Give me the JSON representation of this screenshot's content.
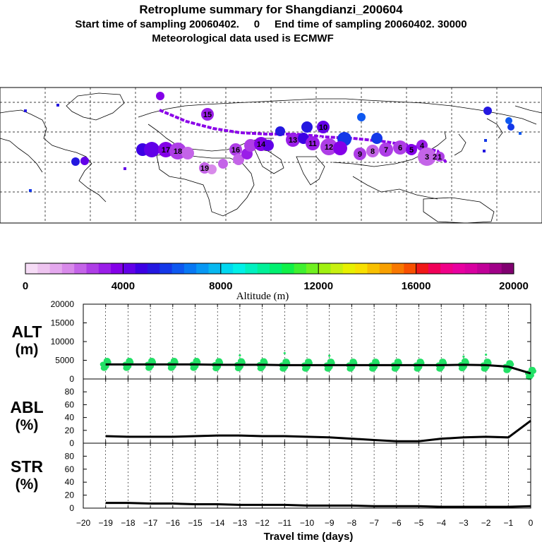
{
  "header": {
    "title": "Retroplume summary for Shangdianzi_200604",
    "line2": "Start time of sampling 20060402.     0     End time of sampling 20060402. 30000",
    "line3": "Meteorological data used is ECMWF"
  },
  "colorbar": {
    "ticks": [
      "0",
      "4000",
      "8000",
      "12000",
      "16000",
      "20000"
    ],
    "label": "Altitude  (m)",
    "colors": [
      "#f6dcf6",
      "#eec4f0",
      "#e4a8ee",
      "#d88aea",
      "#c464e8",
      "#ae3ee6",
      "#9a1ee8",
      "#8400e8",
      "#6200e8",
      "#3c00e4",
      "#2418e0",
      "#1438e8",
      "#0e58f0",
      "#0878f4",
      "#0898f4",
      "#08b8f0",
      "#00d8f0",
      "#00f0e8",
      "#00f0c0",
      "#00f098",
      "#00f070",
      "#10f048",
      "#40f030",
      "#70f020",
      "#a0f010",
      "#c8f010",
      "#e8f000",
      "#f8e000",
      "#f8c000",
      "#f8a000",
      "#f87800",
      "#f85000",
      "#f01818",
      "#f00058",
      "#f00088",
      "#e800a0",
      "#d800a0",
      "#c00098",
      "#a00088",
      "#800070"
    ]
  },
  "map": {
    "trajectory_color": "#8a00e8",
    "clusters": [
      {
        "label": "15"
      },
      {
        "label": "16"
      },
      {
        "label": "19"
      },
      {
        "label": "17"
      },
      {
        "label": "18"
      },
      {
        "label": "14"
      },
      {
        "label": "13"
      },
      {
        "label": "12"
      },
      {
        "label": "11"
      },
      {
        "label": "10"
      },
      {
        "label": "9"
      },
      {
        "label": "8"
      },
      {
        "label": "7"
      },
      {
        "label": "6"
      },
      {
        "label": "5"
      },
      {
        "label": "4"
      },
      {
        "label": "3"
      },
      {
        "label": "2"
      },
      {
        "label": "1"
      }
    ]
  },
  "panels": {
    "alt": {
      "label_line1": "ALT",
      "label_line2": "(m)"
    },
    "abl": {
      "label_line1": "ABL",
      "label_line2": "(%)"
    },
    "str": {
      "label_line1": "STR",
      "label_line2": "(%)"
    }
  },
  "xaxis_label": "Travel time (days)",
  "chart_data": [
    {
      "type": "line",
      "name": "ALT",
      "ylabel": "ALT (m)",
      "ylim": [
        0,
        20000
      ],
      "yticks": [
        0,
        5000,
        10000,
        15000,
        20000
      ],
      "xlim": [
        -20,
        0
      ],
      "x": [
        -19,
        -18,
        -17,
        -16,
        -15,
        -14,
        -13,
        -12,
        -11,
        -10,
        -9,
        -8,
        -7,
        -6,
        -5,
        -4,
        -3,
        -2,
        -1,
        0
      ],
      "values": [
        3900,
        3900,
        3900,
        3900,
        3900,
        3800,
        3800,
        3800,
        3700,
        3700,
        3700,
        3700,
        3700,
        3700,
        3700,
        3700,
        3800,
        3700,
        3300,
        1500
      ],
      "scatter_color": "#22e066",
      "series_color": "#000000"
    },
    {
      "type": "line",
      "name": "ABL",
      "ylabel": "ABL (%)",
      "ylim": [
        0,
        100
      ],
      "yticks": [
        0,
        20,
        40,
        60,
        80
      ],
      "xlim": [
        -20,
        0
      ],
      "x": [
        -19,
        -18,
        -17,
        -16,
        -15,
        -14,
        -13,
        -12,
        -11,
        -10,
        -9,
        -8,
        -7,
        -6,
        -5,
        -4,
        -3,
        -2,
        -1,
        0
      ],
      "values": [
        11,
        10,
        10,
        10,
        11,
        12,
        12,
        11,
        11,
        10,
        9,
        7,
        5,
        3,
        3,
        7,
        9,
        10,
        9,
        35
      ]
    },
    {
      "type": "line",
      "name": "STR",
      "ylabel": "STR (%)",
      "ylim": [
        0,
        100
      ],
      "yticks": [
        0,
        20,
        40,
        60,
        80
      ],
      "xlim": [
        -20,
        0
      ],
      "xticks": [
        -20,
        -19,
        -18,
        -17,
        -16,
        -15,
        -14,
        -13,
        -12,
        -11,
        -10,
        -9,
        -8,
        -7,
        -6,
        -5,
        -4,
        -3,
        -2,
        -1,
        0
      ],
      "x": [
        -19,
        -18,
        -17,
        -16,
        -15,
        -14,
        -13,
        -12,
        -11,
        -10,
        -9,
        -8,
        -7,
        -6,
        -5,
        -4,
        -3,
        -2,
        -1,
        0
      ],
      "values": [
        8,
        8,
        7,
        7,
        6,
        6,
        5,
        5,
        5,
        4,
        4,
        4,
        3,
        3,
        3,
        2,
        2,
        2,
        2,
        3
      ],
      "xlabel": "Travel time (days)"
    }
  ]
}
